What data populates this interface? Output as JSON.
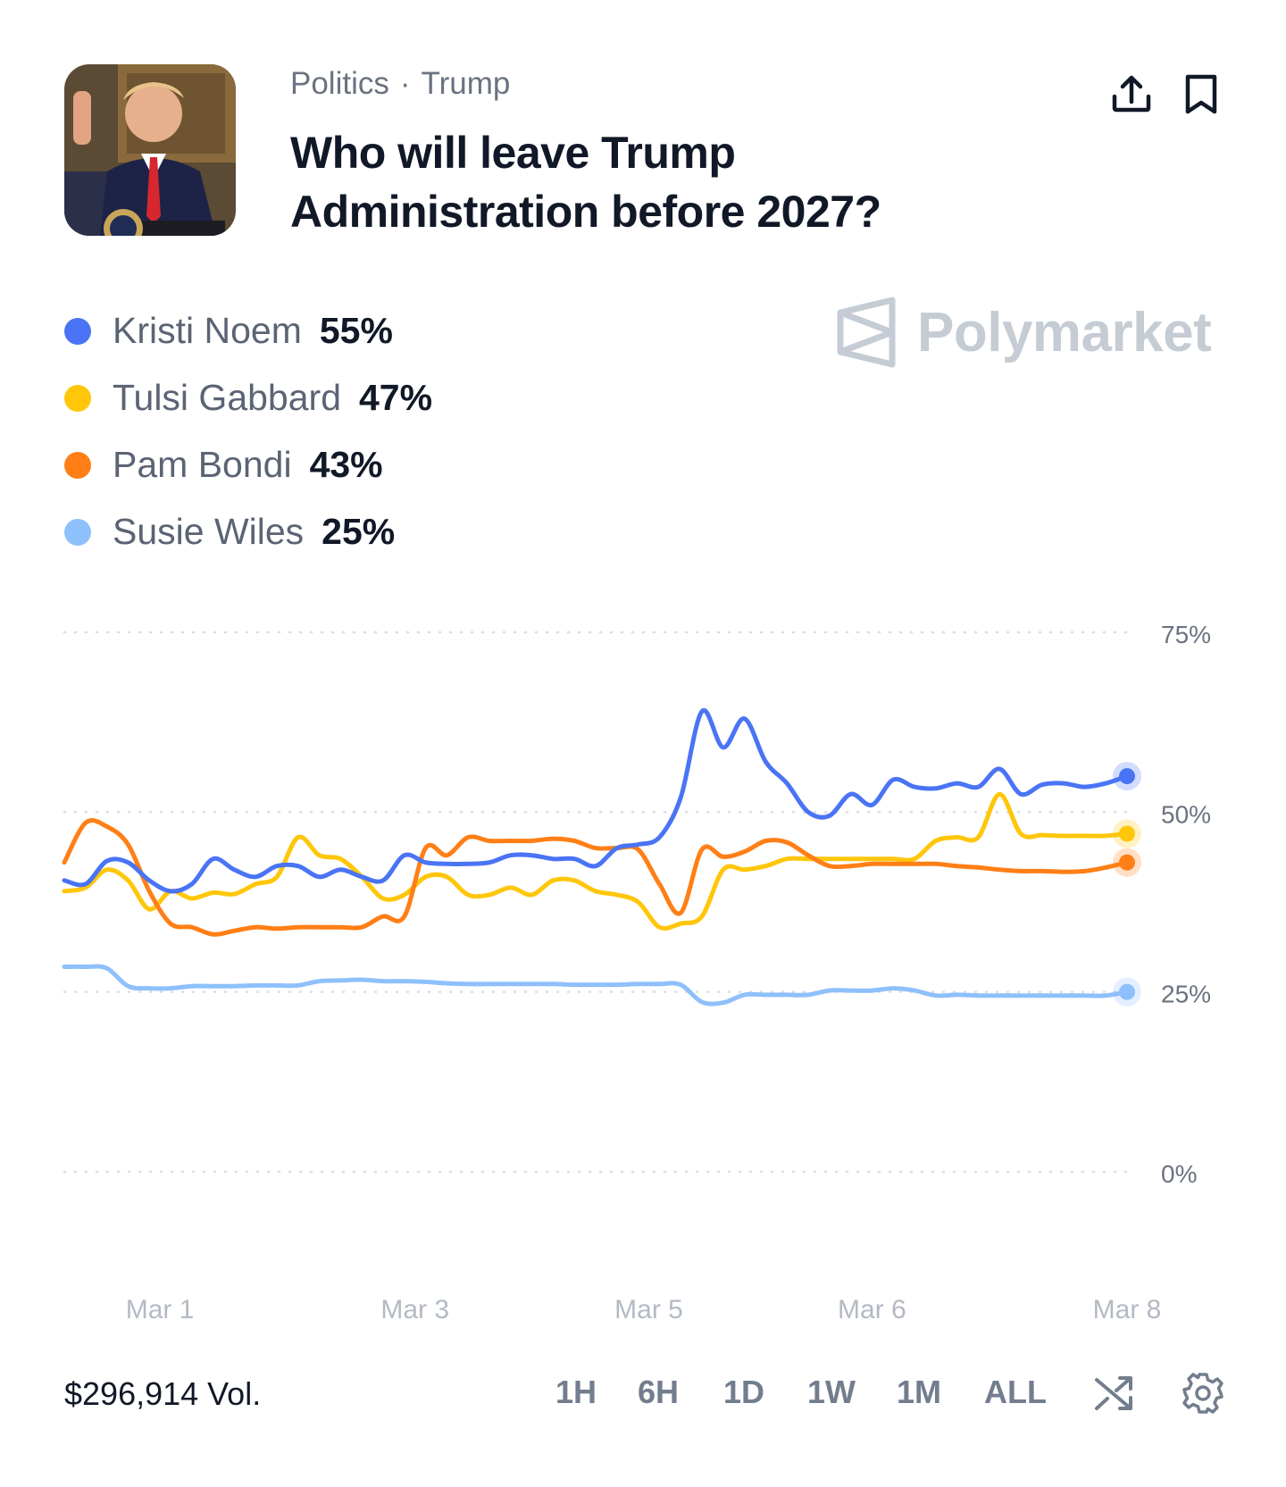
{
  "header": {
    "category": "Politics",
    "separator": "·",
    "tag": "Trump",
    "title": "Who will leave Trump Administration before 2027?"
  },
  "brand": {
    "name": "Polymarket"
  },
  "legend": [
    {
      "name": "Kristi Noem",
      "value": "55%",
      "color": "#4a74f5"
    },
    {
      "name": "Tulsi Gabbard",
      "value": "47%",
      "color": "#ffc60a"
    },
    {
      "name": "Pam Bondi",
      "value": "43%",
      "color": "#ff7f16"
    },
    {
      "name": "Susie Wiles",
      "value": "25%",
      "color": "#8ec0fb"
    }
  ],
  "chart_data": {
    "type": "line",
    "title": "",
    "xlabel": "",
    "ylabel": "",
    "ylim": [
      0,
      75
    ],
    "y_ticks": [
      "75%",
      "50%",
      "25%",
      "0%"
    ],
    "y_tick_values": [
      75,
      50,
      25,
      0
    ],
    "x_range": [
      0,
      10
    ],
    "x_ticks": [
      {
        "label": "Mar 1",
        "x": 0.9
      },
      {
        "label": "Mar 3",
        "x": 3.3
      },
      {
        "label": "Mar 5",
        "x": 5.5
      },
      {
        "label": "Mar 6",
        "x": 7.6
      },
      {
        "label": "Mar 8",
        "x": 10.0
      }
    ],
    "grid": true,
    "legend_position": "top-left",
    "x": [
      0.0,
      0.2,
      0.4,
      0.6,
      0.8,
      1.0,
      1.2,
      1.4,
      1.6,
      1.8,
      2.0,
      2.2,
      2.4,
      2.6,
      2.8,
      3.0,
      3.2,
      3.4,
      3.6,
      3.8,
      4.0,
      4.2,
      4.4,
      4.6,
      4.8,
      5.0,
      5.2,
      5.4,
      5.6,
      5.8,
      6.0,
      6.2,
      6.4,
      6.6,
      6.8,
      7.0,
      7.2,
      7.4,
      7.6,
      7.8,
      8.0,
      8.2,
      8.4,
      8.6,
      8.8,
      9.0,
      9.2,
      9.4,
      9.6,
      9.8,
      10.0
    ],
    "series": [
      {
        "name": "Kristi Noem",
        "color": "#4a74f5",
        "values": [
          40.5,
          40,
          43.2,
          43,
          40.5,
          39,
          40,
          43.5,
          42,
          41,
          42.5,
          42.5,
          41,
          42,
          41,
          40.5,
          44,
          43,
          42.8,
          42.8,
          43,
          44,
          44,
          43.5,
          43.5,
          42.5,
          45,
          45.5,
          46.5,
          52,
          64,
          59,
          63,
          57,
          54,
          50,
          49.5,
          52.5,
          51,
          54.5,
          53.5,
          53.3,
          54,
          53.5,
          56,
          52.5,
          53.8,
          54,
          53.5,
          54,
          55
        ]
      },
      {
        "name": "Tulsi Gabbard",
        "color": "#ffc60a",
        "values": [
          39,
          39.5,
          42,
          40.5,
          36.5,
          39,
          38,
          38.8,
          38.6,
          40,
          41,
          46.5,
          44,
          43.5,
          41,
          38,
          38.5,
          41,
          41,
          38.5,
          38.5,
          39.5,
          38.5,
          40.5,
          40.5,
          39,
          38.5,
          37.5,
          34,
          34.5,
          35.5,
          42,
          42,
          42.5,
          43.5,
          43.5,
          43.5,
          43.5,
          43.5,
          43.5,
          43.5,
          46,
          46.5,
          46.5,
          52.5,
          47,
          46.8,
          46.7,
          46.7,
          46.7,
          47
        ]
      },
      {
        "name": "Pam Bondi",
        "color": "#ff7f16",
        "values": [
          43,
          48.5,
          48,
          45.5,
          39,
          34.5,
          34,
          33,
          33.5,
          34,
          33.8,
          34,
          34,
          34,
          34,
          35.5,
          35.5,
          45,
          44,
          46.5,
          46,
          46,
          46,
          46.3,
          46,
          45,
          45,
          44.8,
          40,
          36,
          44.8,
          43.8,
          44.5,
          46,
          45.8,
          44,
          42.5,
          42.5,
          42.8,
          42.8,
          42.8,
          42.8,
          42.5,
          42.3,
          42,
          41.8,
          41.8,
          41.7,
          41.8,
          42.3,
          43
        ]
      },
      {
        "name": "Susie Wiles",
        "color": "#8ec0fb",
        "values": [
          28.5,
          28.5,
          28.3,
          25.8,
          25.5,
          25.5,
          25.8,
          25.8,
          25.8,
          25.9,
          25.9,
          25.9,
          26.5,
          26.6,
          26.7,
          26.5,
          26.5,
          26.4,
          26.2,
          26.1,
          26.1,
          26.1,
          26.1,
          26.1,
          26,
          26,
          26,
          26.1,
          26.1,
          26,
          23.6,
          23.5,
          24.6,
          24.6,
          24.6,
          24.6,
          25.2,
          25.2,
          25.2,
          25.5,
          25.2,
          24.5,
          24.6,
          24.5,
          24.5,
          24.5,
          24.5,
          24.5,
          24.5,
          24.5,
          25
        ]
      }
    ]
  },
  "footer": {
    "volume": "$296,914 Vol.",
    "ranges": [
      "1H",
      "6H",
      "1D",
      "1W",
      "1M",
      "ALL"
    ]
  }
}
